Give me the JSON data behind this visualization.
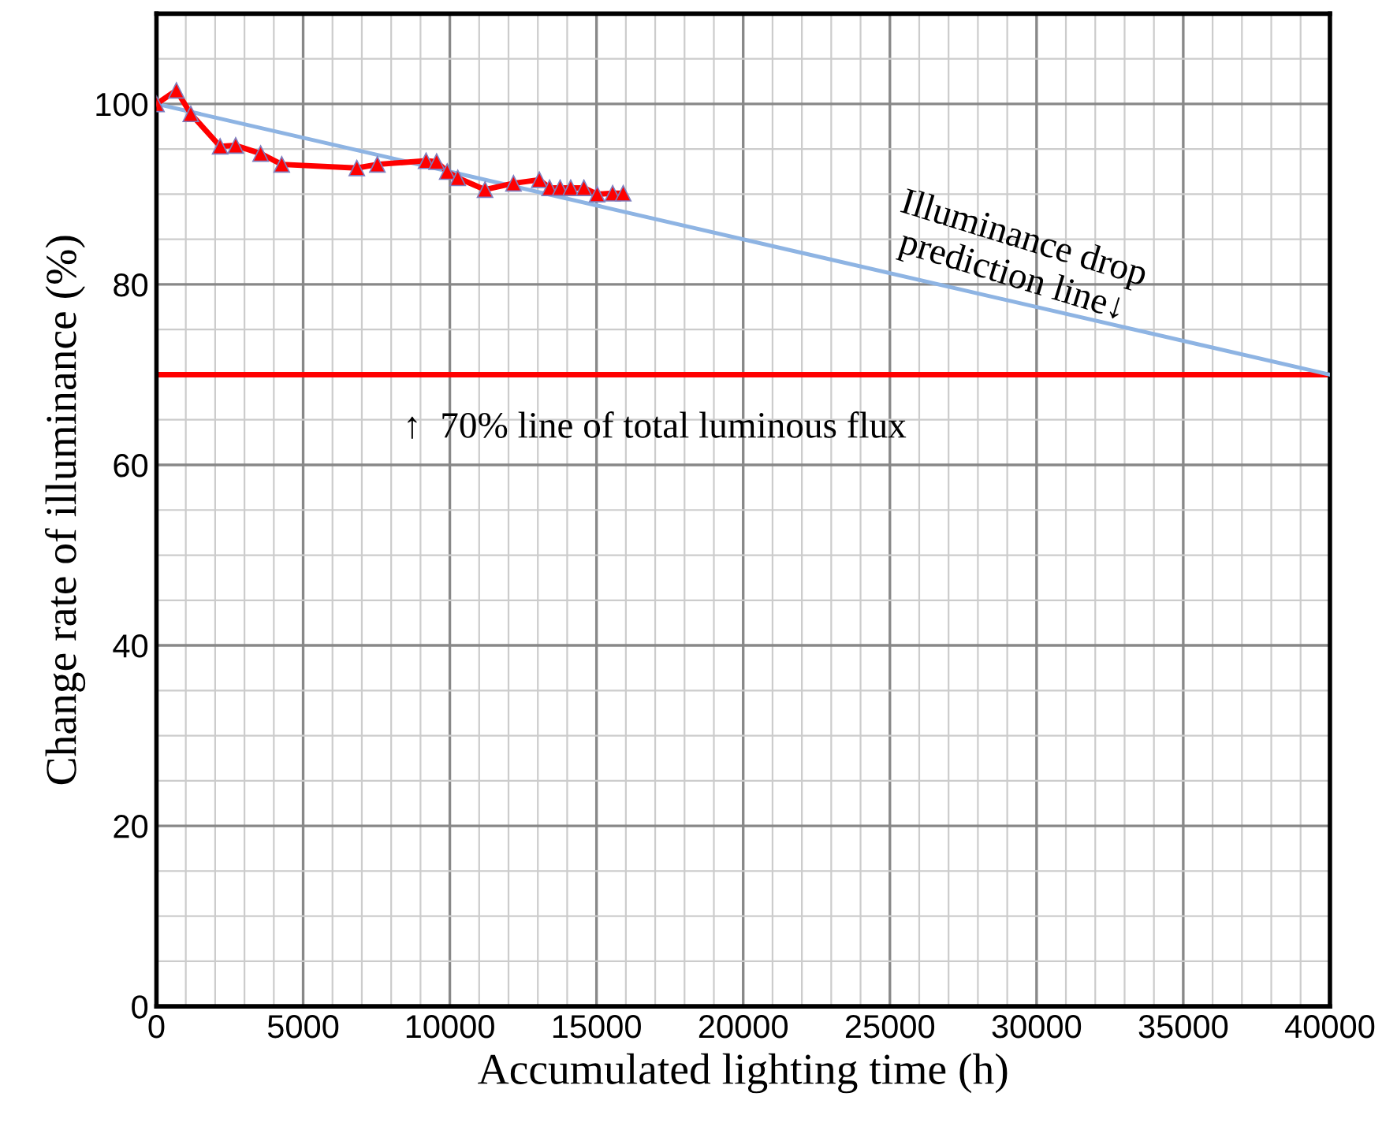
{
  "chart_data": {
    "type": "line",
    "xlabel": "Accumulated lighting time (h)",
    "ylabel": "Change rate of illuminance (%)",
    "series": [
      {
        "color": "#ff0000",
        "marker": "triangle",
        "x": [
          0,
          680,
          1170,
          2170,
          2700,
          3550,
          4270,
          6830,
          7530,
          9190,
          9550,
          9910,
          10270,
          11200,
          12170,
          13050,
          13400,
          13760,
          14120,
          14570,
          15020,
          15550,
          15910
        ],
        "values": [
          100,
          101.5,
          98.9,
          95.3,
          95.4,
          94.5,
          93.3,
          92.9,
          93.3,
          93.7,
          93.6,
          92.5,
          91.8,
          90.5,
          91.2,
          91.6,
          90.7,
          90.7,
          90.7,
          90.7,
          90.0,
          90.1,
          90.1
        ]
      },
      {
        "color": "#8eb4e3",
        "x": [
          0,
          40000
        ],
        "values": [
          100,
          70
        ]
      }
    ],
    "ref_lines": [
      {
        "axis": "y",
        "value": 70,
        "color": "#ff0000"
      }
    ],
    "annotations": [
      {
        "text": "Illuminance drop\nprediction line↓",
        "x": 29000,
        "y": 79
      },
      "↑  70% line of total luminous flux"
    ],
    "xlim": [
      0,
      40000
    ],
    "xticks": [
      0,
      5000,
      10000,
      15000,
      20000,
      25000,
      30000,
      35000,
      40000
    ],
    "ylim": [
      0,
      110
    ],
    "yticks": [
      0,
      20,
      40,
      60,
      80,
      100
    ],
    "grid": true
  }
}
